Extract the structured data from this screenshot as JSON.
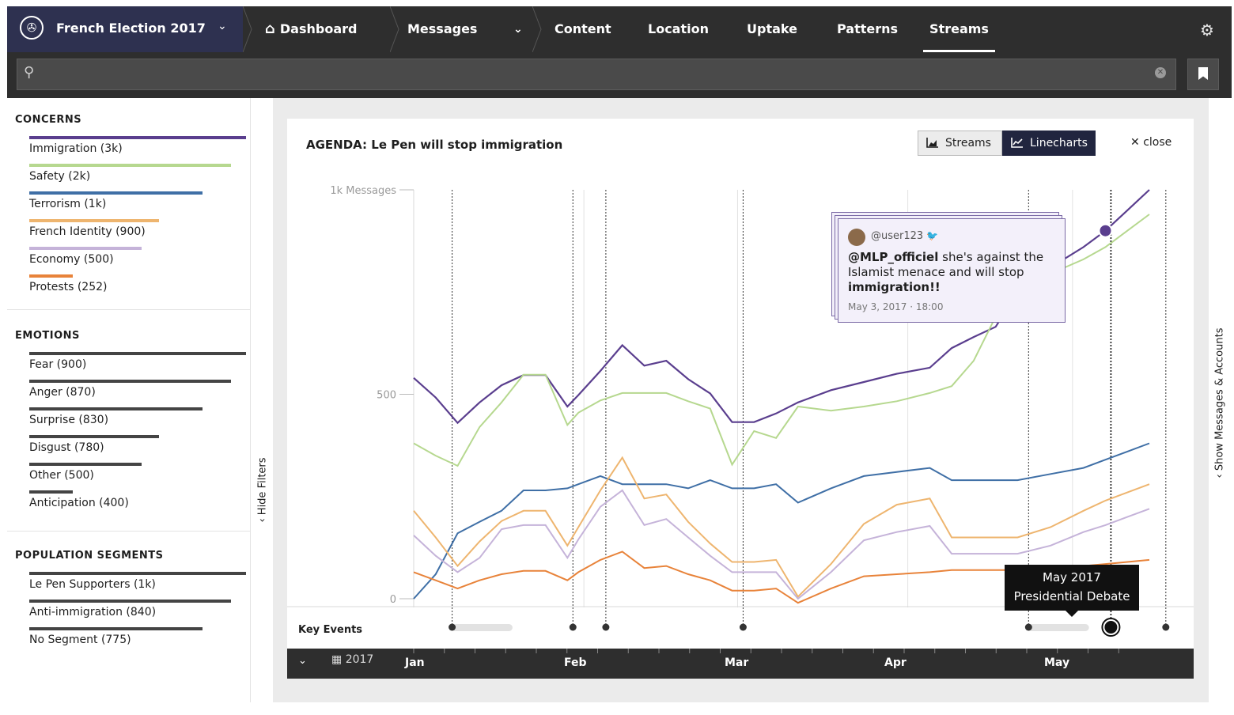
{
  "topbar": {
    "app_title": "French Election 2017",
    "nav": [
      {
        "label": "Dashboard",
        "icon": "home-icon"
      },
      {
        "label": "Messages",
        "icon": "chevron-down-icon"
      },
      {
        "label": "Content"
      },
      {
        "label": "Location"
      },
      {
        "label": "Uptake"
      },
      {
        "label": "Patterns"
      },
      {
        "label": "Streams",
        "active": true
      }
    ],
    "settings_icon": "gear-icon"
  },
  "search": {
    "value": "",
    "placeholder": ""
  },
  "sidebar": {
    "concerns": {
      "title": "CONCERNS",
      "items": [
        {
          "label": "Immigration (3k)",
          "color": "#5a3e8e",
          "fraction": 1.0
        },
        {
          "label": "Safety (2k)",
          "color": "#b6d88f",
          "fraction": 0.93
        },
        {
          "label": "Terrorism (1k)",
          "color": "#3f6fa6",
          "fraction": 0.8
        },
        {
          "label": "French Identity (900)",
          "color": "#eeb56f",
          "fraction": 0.6
        },
        {
          "label": "Economy (500)",
          "color": "#c5b3d9",
          "fraction": 0.52
        },
        {
          "label": "Protests (252)",
          "color": "#e8833a",
          "fraction": 0.2
        }
      ]
    },
    "emotions": {
      "title": "EMOTIONS",
      "items": [
        {
          "label": "Fear (900)",
          "fraction": 1.0
        },
        {
          "label": "Anger (870)",
          "fraction": 0.93
        },
        {
          "label": "Surprise (830)",
          "fraction": 0.8
        },
        {
          "label": "Disgust (780)",
          "fraction": 0.6
        },
        {
          "label": "Other (500)",
          "fraction": 0.52
        },
        {
          "label": "Anticipation (400)",
          "fraction": 0.2
        }
      ]
    },
    "segments": {
      "title": "POPULATION SEGMENTS",
      "items": [
        {
          "label": "Le Pen Supporters (1k)",
          "fraction": 1.0
        },
        {
          "label": "Anti-immigration (840)",
          "fraction": 0.93
        },
        {
          "label": "No Segment (775)",
          "fraction": 0.8
        }
      ]
    },
    "hide_filters": "Hide Filters"
  },
  "panel": {
    "title": "AGENDA: Le Pen will stop immigration",
    "toggle_streams": "Streams",
    "toggle_linecharts": "Linecharts",
    "close": "close",
    "key_events_label": "Key Events",
    "tooltip": {
      "user": "@user123",
      "mention": "@MLP_officiel",
      "text_mid": " she's against the Islamist menace and will stop ",
      "text_bold": "immigration!!",
      "time": "May 3, 2017 · 18:00"
    },
    "event_tip_line1": "May 2017",
    "event_tip_line2": "Presidential Debate",
    "timeline": {
      "year": "2017",
      "months": [
        "Jan",
        "Feb",
        "Mar",
        "Apr",
        "May"
      ]
    }
  },
  "show_messages": "Show Messages & Accounts",
  "chart_data": {
    "type": "line",
    "title": "",
    "ylabel": "",
    "y_ticks": [
      "0",
      "500",
      "1k Messages"
    ],
    "ylim": [
      0,
      1000
    ],
    "x_unit": "days since Jan 1 2017",
    "xlim": [
      0,
      134
    ],
    "x": [
      0,
      4,
      8,
      12,
      16,
      20,
      24,
      28,
      30,
      34,
      38,
      42,
      46,
      50,
      54,
      58,
      62,
      66,
      70,
      76,
      82,
      88,
      94,
      98,
      102,
      106,
      110,
      116,
      122,
      126,
      130,
      134
    ],
    "series": [
      {
        "name": "Immigration",
        "color": "#5a3e8e",
        "values": [
          540,
          492,
          430,
          480,
          522,
          547,
          547,
          470,
          498,
          557,
          620,
          570,
          582,
          537,
          502,
          432,
          432,
          453,
          480,
          510,
          530,
          550,
          565,
          613,
          640,
          665,
          750,
          810,
          860,
          900,
          950,
          1000
        ]
      },
      {
        "name": "Safety",
        "color": "#b6d88f",
        "values": [
          380,
          350,
          325,
          420,
          480,
          548,
          548,
          425,
          455,
          485,
          503,
          503,
          503,
          483,
          465,
          328,
          410,
          393,
          470,
          460,
          470,
          483,
          503,
          520,
          582,
          690,
          750,
          795,
          830,
          860,
          900,
          940
        ]
      },
      {
        "name": "Terrorism",
        "color": "#3f6fa6",
        "values": [
          0,
          60,
          160,
          188,
          215,
          265,
          265,
          270,
          280,
          300,
          280,
          280,
          280,
          270,
          290,
          270,
          270,
          280,
          235,
          270,
          300,
          310,
          320,
          290,
          290,
          290,
          290,
          305,
          320,
          340,
          360,
          380
        ]
      },
      {
        "name": "French Identity",
        "color": "#eeb56f",
        "values": [
          215,
          150,
          80,
          140,
          190,
          215,
          215,
          130,
          175,
          265,
          345,
          245,
          255,
          188,
          135,
          90,
          90,
          95,
          5,
          85,
          183,
          230,
          245,
          150,
          150,
          150,
          150,
          175,
          215,
          240,
          260,
          280
        ]
      },
      {
        "name": "Economy",
        "color": "#c5b3d9",
        "values": [
          155,
          105,
          65,
          100,
          170,
          180,
          180,
          100,
          145,
          225,
          265,
          180,
          195,
          150,
          105,
          65,
          65,
          65,
          0,
          65,
          143,
          163,
          178,
          110,
          110,
          110,
          110,
          130,
          163,
          180,
          200,
          220
        ]
      },
      {
        "name": "Protests",
        "color": "#e8833a",
        "values": [
          65,
          45,
          25,
          45,
          60,
          68,
          68,
          45,
          65,
          95,
          115,
          75,
          80,
          60,
          45,
          20,
          20,
          25,
          -10,
          25,
          55,
          60,
          65,
          70,
          70,
          70,
          70,
          75,
          80,
          85,
          90,
          95
        ]
      }
    ],
    "key_events_x": [
      7,
      29,
      35,
      60,
      112,
      127,
      137
    ],
    "selected_event_x": 127
  }
}
